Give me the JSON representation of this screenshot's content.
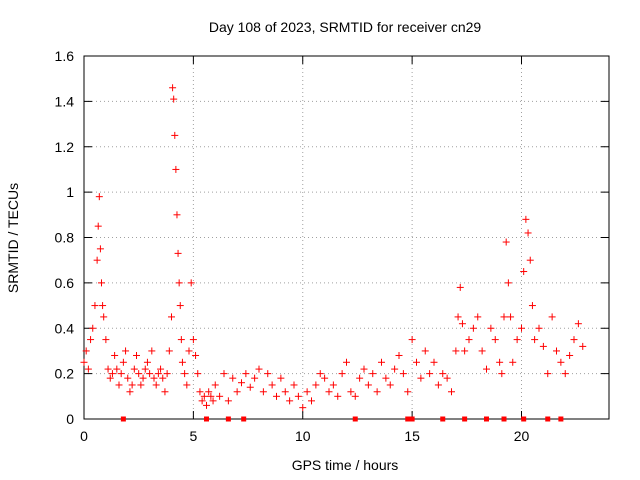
{
  "chart_data": {
    "type": "scatter",
    "title": "Day 108 of 2023, SRMTID for receiver cn29",
    "xlabel": "GPS time / hours",
    "ylabel": "SRMTID / TECUs",
    "xlim": [
      0,
      24
    ],
    "ylim": [
      0,
      1.6
    ],
    "xticks": [
      0,
      5,
      10,
      15,
      20
    ],
    "yticks": [
      0,
      0.2,
      0.4,
      0.6,
      0.8,
      1,
      1.2,
      1.4,
      1.6
    ],
    "xtick_labels": [
      "0",
      "5",
      "10",
      "15",
      "20"
    ],
    "ytick_labels": [
      "0",
      "0.2",
      "0.4",
      "0.6",
      "0.8",
      "1",
      "1.2",
      "1.4",
      "1.6"
    ],
    "grid": true,
    "marker": "plus",
    "color": "#ff0000",
    "series": [
      {
        "name": "SRMTID",
        "x": [
          0.0,
          0.1,
          0.2,
          0.3,
          0.4,
          0.5,
          0.6,
          0.65,
          0.7,
          0.75,
          0.8,
          0.85,
          0.9,
          1.0,
          1.1,
          1.2,
          1.3,
          1.4,
          1.5,
          1.6,
          1.7,
          1.8,
          1.9,
          2.0,
          2.1,
          2.2,
          2.3,
          2.4,
          2.5,
          2.6,
          2.7,
          2.8,
          2.9,
          3.0,
          3.1,
          3.2,
          3.3,
          3.4,
          3.5,
          3.6,
          3.7,
          3.8,
          3.9,
          4.0,
          4.05,
          4.1,
          4.15,
          4.2,
          4.25,
          4.3,
          4.35,
          4.4,
          4.45,
          4.5,
          4.6,
          4.7,
          4.8,
          4.9,
          5.0,
          5.1,
          5.2,
          5.3,
          5.4,
          5.5,
          5.6,
          5.7,
          5.8,
          5.9,
          6.0,
          6.2,
          6.4,
          6.6,
          6.8,
          7.0,
          7.2,
          7.4,
          7.6,
          7.8,
          8.0,
          8.2,
          8.4,
          8.6,
          8.8,
          9.0,
          9.2,
          9.4,
          9.6,
          9.8,
          10.0,
          10.2,
          10.4,
          10.6,
          10.8,
          11.0,
          11.2,
          11.4,
          11.6,
          11.8,
          12.0,
          12.2,
          12.4,
          12.6,
          12.8,
          13.0,
          13.2,
          13.4,
          13.6,
          13.8,
          14.0,
          14.2,
          14.4,
          14.6,
          14.8,
          15.0,
          15.2,
          15.4,
          15.6,
          15.8,
          16.0,
          16.2,
          16.4,
          16.6,
          16.8,
          17.0,
          17.1,
          17.2,
          17.3,
          17.4,
          17.6,
          17.8,
          18.0,
          18.2,
          18.4,
          18.6,
          18.8,
          19.0,
          19.1,
          19.2,
          19.3,
          19.4,
          19.5,
          19.6,
          19.8,
          20.0,
          20.1,
          20.2,
          20.3,
          20.4,
          20.5,
          20.6,
          20.8,
          21.0,
          21.2,
          21.4,
          21.6,
          21.8,
          22.0,
          22.2,
          22.4,
          22.6,
          22.8
        ],
        "y": [
          0.25,
          0.3,
          0.22,
          0.35,
          0.4,
          0.5,
          0.7,
          0.85,
          0.98,
          0.75,
          0.6,
          0.5,
          0.45,
          0.35,
          0.22,
          0.18,
          0.2,
          0.28,
          0.22,
          0.15,
          0.2,
          0.25,
          0.3,
          0.18,
          0.12,
          0.15,
          0.22,
          0.28,
          0.2,
          0.15,
          0.18,
          0.22,
          0.25,
          0.2,
          0.3,
          0.18,
          0.15,
          0.2,
          0.22,
          0.18,
          0.12,
          0.2,
          0.3,
          0.45,
          1.46,
          1.41,
          1.25,
          1.1,
          0.9,
          0.73,
          0.6,
          0.5,
          0.35,
          0.25,
          0.2,
          0.15,
          0.3,
          0.6,
          0.35,
          0.28,
          0.2,
          0.12,
          0.08,
          0.1,
          0.06,
          0.12,
          0.1,
          0.08,
          0.15,
          0.1,
          0.2,
          0.08,
          0.18,
          0.12,
          0.16,
          0.2,
          0.14,
          0.18,
          0.22,
          0.12,
          0.2,
          0.15,
          0.1,
          0.18,
          0.12,
          0.08,
          0.15,
          0.1,
          0.05,
          0.12,
          0.08,
          0.15,
          0.2,
          0.18,
          0.12,
          0.15,
          0.1,
          0.2,
          0.25,
          0.12,
          0.1,
          0.18,
          0.22,
          0.15,
          0.2,
          0.12,
          0.25,
          0.18,
          0.15,
          0.22,
          0.28,
          0.2,
          0.12,
          0.35,
          0.25,
          0.18,
          0.3,
          0.2,
          0.25,
          0.15,
          0.2,
          0.18,
          0.12,
          0.3,
          0.45,
          0.58,
          0.42,
          0.3,
          0.35,
          0.4,
          0.45,
          0.3,
          0.22,
          0.4,
          0.35,
          0.25,
          0.2,
          0.45,
          0.78,
          0.6,
          0.45,
          0.25,
          0.35,
          0.4,
          0.65,
          0.88,
          0.82,
          0.7,
          0.5,
          0.35,
          0.4,
          0.32,
          0.2,
          0.45,
          0.3,
          0.25,
          0.2,
          0.28,
          0.35,
          0.42,
          0.32
        ]
      }
    ],
    "gaps_at_zero_x": [
      1.8,
      5.6,
      6.6,
      7.3,
      12.4,
      14.8,
      15.0,
      16.4,
      17.4,
      18.4,
      19.2,
      20.1,
      21.2,
      21.8
    ]
  }
}
